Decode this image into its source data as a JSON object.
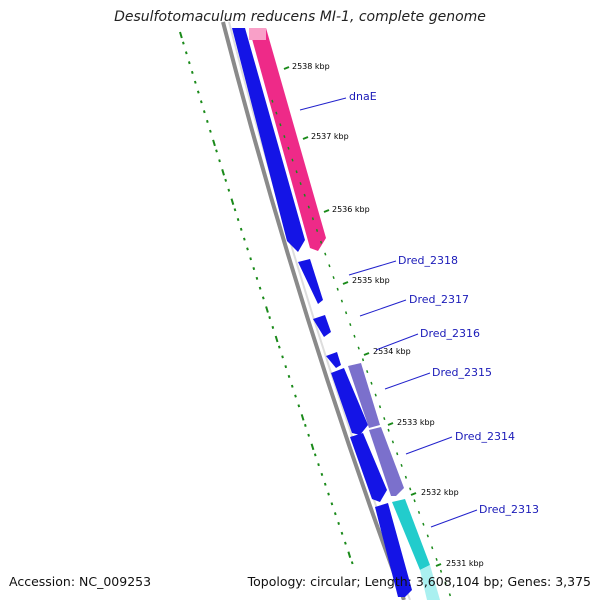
{
  "title": "Desulfotomaculum reducens MI-1, complete genome",
  "footer": {
    "accession": "Accession: NC_009253",
    "summary": "Topology: circular; Length: 3,608,104 bp; Genes: 3,375"
  },
  "colors": {
    "cds_forward": "#1414e6",
    "feature_pink": "#ee2a88",
    "feature_purple": "#7b70cc",
    "feature_cyan": "#22cccc",
    "backbone": "#8a8a8a",
    "gc_skew": "#1a8a1a",
    "label_line": "#2222cc"
  },
  "tick_labels": [
    "2538 kbp",
    "2537 kbp",
    "2536 kbp",
    "2535 kbp",
    "2534 kbp",
    "2533 kbp",
    "2532 kbp",
    "2531 kbp"
  ],
  "gene_labels": [
    "dnaE",
    "Dred_2318",
    "Dred_2317",
    "Dred_2316",
    "Dred_2315",
    "Dred_2314",
    "Dred_2313"
  ]
}
